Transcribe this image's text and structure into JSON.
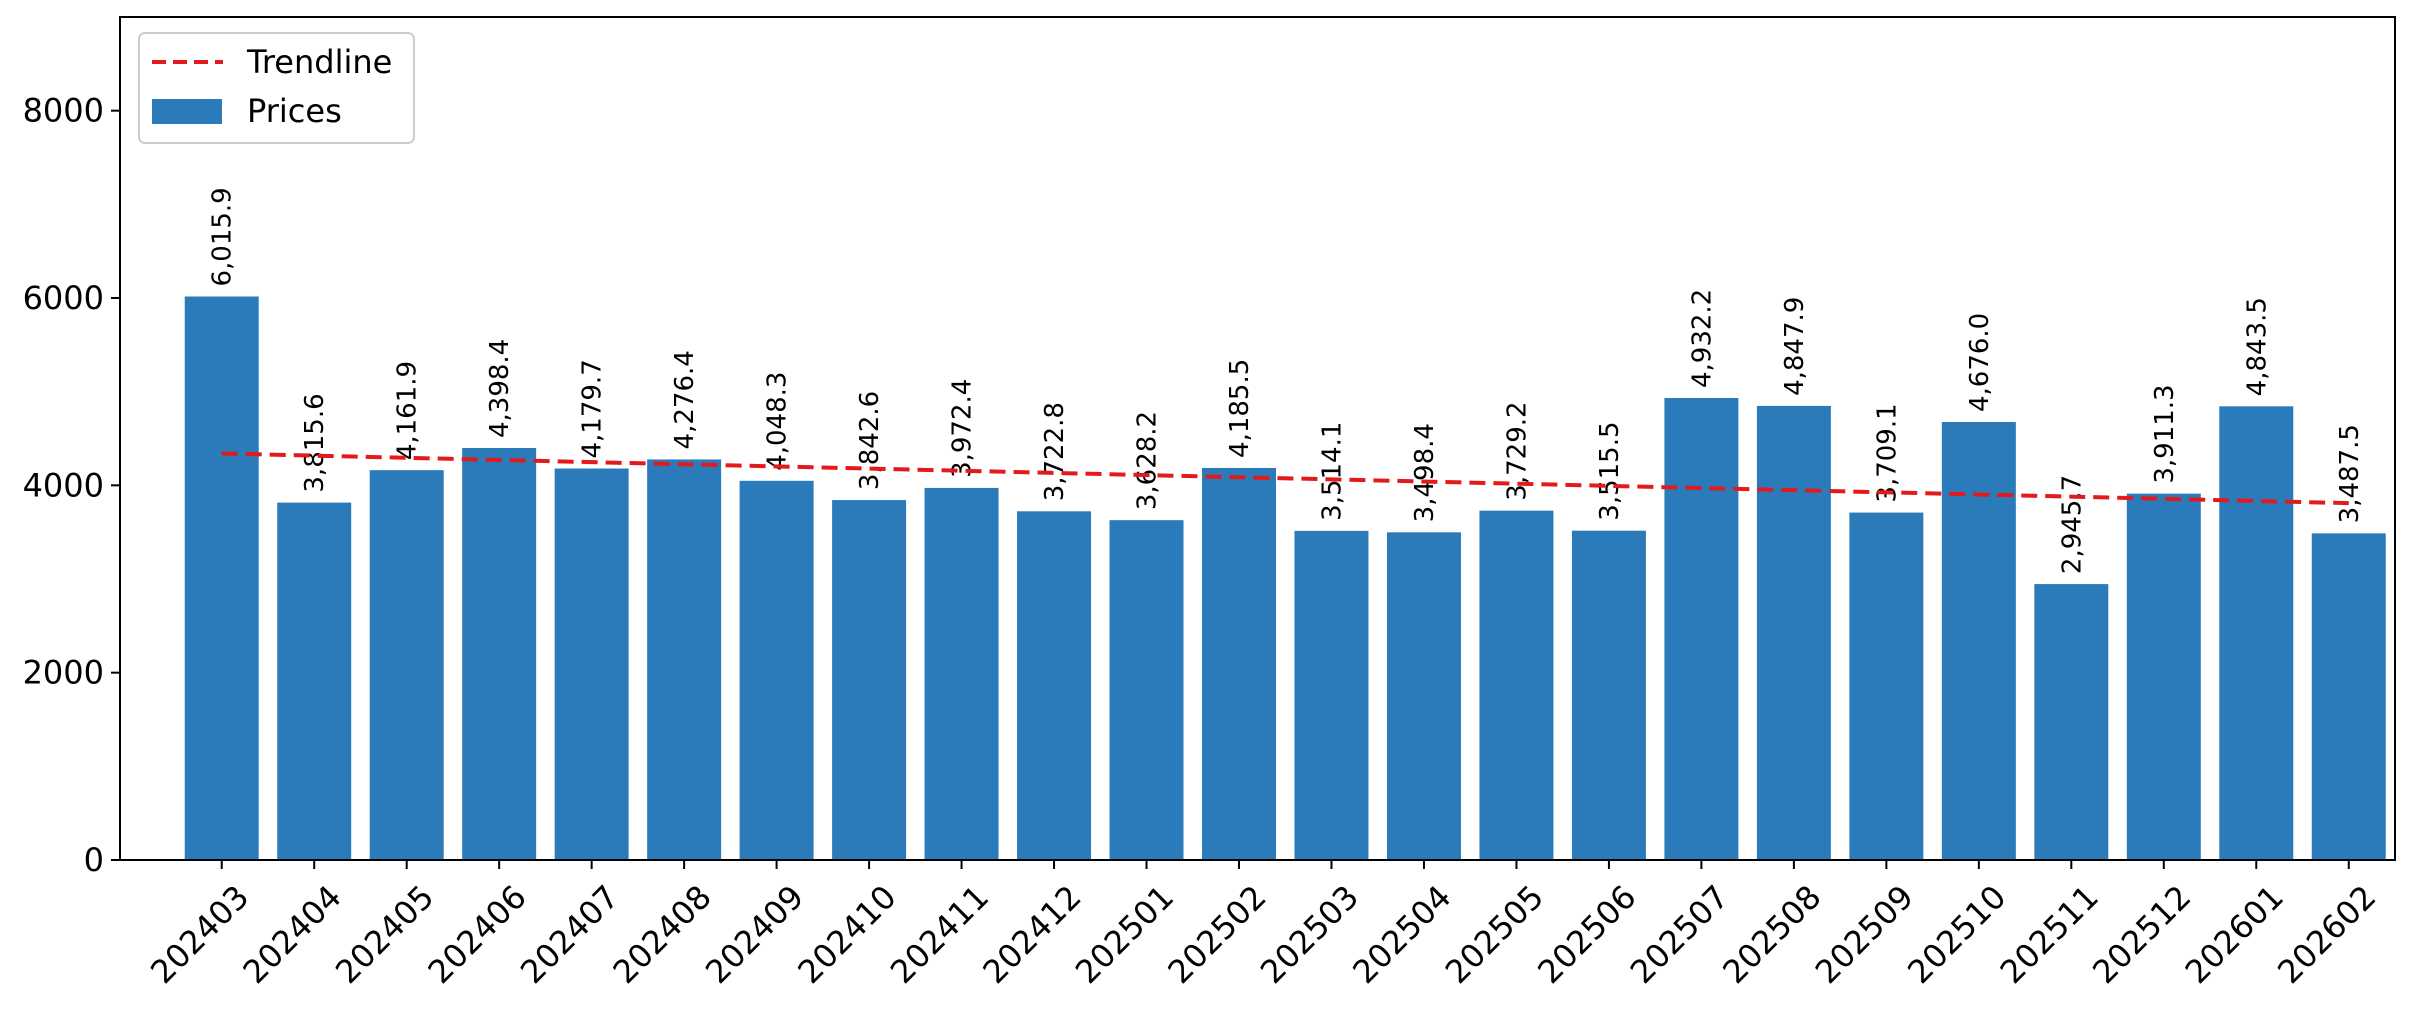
{
  "chart_data": {
    "type": "bar",
    "categories": [
      "202403",
      "202404",
      "202405",
      "202406",
      "202407",
      "202408",
      "202409",
      "202410",
      "202411",
      "202412",
      "202501",
      "202502",
      "202503",
      "202504",
      "202505",
      "202506",
      "202507",
      "202508",
      "202509",
      "202510",
      "202511",
      "202512",
      "202601",
      "202602"
    ],
    "series": [
      {
        "name": "Prices",
        "values": [
          6015.9,
          3815.6,
          4161.9,
          4398.4,
          4179.7,
          4276.4,
          4048.3,
          3842.6,
          3972.4,
          3722.8,
          3628.2,
          4185.5,
          3514.1,
          3498.4,
          3729.2,
          3515.5,
          4932.2,
          4847.9,
          3709.1,
          4676.0,
          2945.7,
          3911.3,
          4843.5,
          3487.5
        ],
        "value_labels": [
          "6,015.9",
          "3,815.6",
          "4,161.9",
          "4,398.4",
          "4,179.7",
          "4,276.4",
          "4,048.3",
          "3,842.6",
          "3,972.4",
          "3,722.8",
          "3,628.2",
          "4,185.5",
          "3,514.1",
          "3,498.4",
          "3,729.2",
          "3,515.5",
          "4,932.2",
          "4,847.9",
          "3,709.1",
          "4,676.0",
          "2,945.7",
          "3,911.3",
          "4,843.5",
          "3,487.5"
        ],
        "color": "#2b7bba"
      }
    ],
    "trendline": {
      "name": "Trendline",
      "start": 4340,
      "end": 3810,
      "color": "#e31a1c",
      "style": "dashed"
    },
    "yticks": [
      0,
      2000,
      4000,
      6000,
      8000
    ],
    "ylim": [
      0,
      9000
    ],
    "legend": {
      "position": "top-left",
      "entries": [
        "Trendline",
        "Prices"
      ]
    },
    "grid": false,
    "title": "",
    "xlabel": "",
    "ylabel": ""
  }
}
